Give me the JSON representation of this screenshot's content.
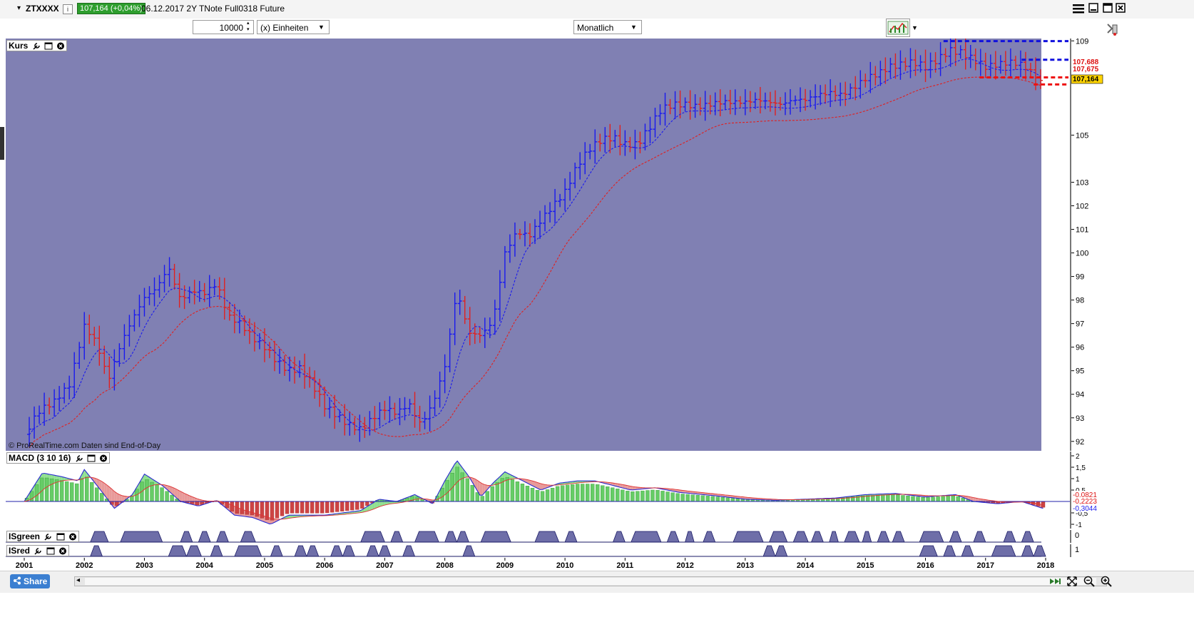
{
  "header": {
    "symbol": "ZTXXXX",
    "info_icon": "i",
    "price_badge": "107,164 (+0,04%)",
    "instrument": "06.12.2017 2Y TNote Full0318 Future"
  },
  "toolbar": {
    "quantity": "10000",
    "units": "(x) Einheiten",
    "period": "Monatlich"
  },
  "icons": {
    "menu": "hamburger-menu-icon",
    "minimize": "minimize-icon",
    "maximize": "maximize-icon",
    "close": "close-icon",
    "chart_type": "chart-type-icon",
    "side_handle": "side-handle-icon"
  },
  "colors": {
    "price_bg": "#8080b3",
    "up": "#1a1aee",
    "down": "#e02020",
    "ma_short": "#1a1aee",
    "ma_long": "#e02020",
    "macd_pos": "#66cc66",
    "macd_neg": "#cc4444",
    "zone_fill": "#6e6ea8"
  },
  "chart_data": [
    {
      "type": "ohlc",
      "panel": "Kurs",
      "x": [
        "2001",
        "2002",
        "2003",
        "2004",
        "2005",
        "2006",
        "2007",
        "2008",
        "2009",
        "2010",
        "2011",
        "2012",
        "2013",
        "2014",
        "2015",
        "2016",
        "2017",
        "2018"
      ],
      "ylim": [
        91.6,
        109.1
      ],
      "y_ticks": [
        "109",
        "105",
        "103",
        "102",
        "101",
        "100",
        "99",
        "98",
        "97",
        "96",
        "95",
        "94",
        "93",
        "92"
      ],
      "price_labels": [
        {
          "text": "107,688",
          "kind": "red"
        },
        {
          "text": "107,675",
          "kind": "red"
        },
        {
          "text": "107,164",
          "kind": "yellow"
        }
      ],
      "levels": [
        {
          "value": 108.99,
          "color": "blue",
          "from_year": 2016.3
        },
        {
          "value": 108.2,
          "color": "blue",
          "from_year": 2017.6
        },
        {
          "value": 107.45,
          "color": "red",
          "from_year": 2016.9
        },
        {
          "value": 107.15,
          "color": "red",
          "from_year": 2017.8
        }
      ],
      "watermark": "© ProRealTime.com  Daten sind End-of-Day",
      "series": [
        {
          "name": "Price (monthly close)",
          "points": [
            [
              2001.0,
              92.3
            ],
            [
              2001.25,
              93.3
            ],
            [
              2001.5,
              93.7
            ],
            [
              2001.75,
              94.4
            ],
            [
              2002.0,
              96.9
            ],
            [
              2002.2,
              96.2
            ],
            [
              2002.4,
              94.6
            ],
            [
              2002.6,
              96.1
            ],
            [
              2002.8,
              97.2
            ],
            [
              2003.0,
              98.1
            ],
            [
              2003.2,
              98.5
            ],
            [
              2003.4,
              99.4
            ],
            [
              2003.6,
              98.0
            ],
            [
              2003.8,
              98.4
            ],
            [
              2004.0,
              98.3
            ],
            [
              2004.2,
              98.7
            ],
            [
              2004.4,
              97.3
            ],
            [
              2004.6,
              97.0
            ],
            [
              2004.8,
              96.4
            ],
            [
              2005.0,
              96.0
            ],
            [
              2005.2,
              95.4
            ],
            [
              2005.4,
              95.0
            ],
            [
              2005.6,
              95.1
            ],
            [
              2005.8,
              94.4
            ],
            [
              2006.0,
              93.5
            ],
            [
              2006.2,
              93.1
            ],
            [
              2006.4,
              92.7
            ],
            [
              2006.6,
              92.5
            ],
            [
              2006.8,
              93.0
            ],
            [
              2007.0,
              93.4
            ],
            [
              2007.2,
              93.2
            ],
            [
              2007.4,
              93.6
            ],
            [
              2007.6,
              92.7
            ],
            [
              2007.8,
              93.6
            ],
            [
              2008.0,
              95.2
            ],
            [
              2008.2,
              98.4
            ],
            [
              2008.4,
              96.6
            ],
            [
              2008.6,
              96.5
            ],
            [
              2008.8,
              97.1
            ],
            [
              2009.0,
              100.0
            ],
            [
              2009.2,
              100.9
            ],
            [
              2009.4,
              100.7
            ],
            [
              2009.6,
              101.4
            ],
            [
              2009.8,
              102.0
            ],
            [
              2010.0,
              102.6
            ],
            [
              2010.2,
              103.7
            ],
            [
              2010.4,
              104.4
            ],
            [
              2010.6,
              104.8
            ],
            [
              2010.8,
              104.9
            ],
            [
              2011.0,
              104.6
            ],
            [
              2011.2,
              104.6
            ],
            [
              2011.4,
              105.3
            ],
            [
              2011.6,
              106.1
            ],
            [
              2011.8,
              106.3
            ],
            [
              2012.0,
              106.3
            ],
            [
              2012.2,
              106.2
            ],
            [
              2012.4,
              106.3
            ],
            [
              2012.6,
              106.4
            ],
            [
              2012.8,
              106.4
            ],
            [
              2013.0,
              106.4
            ],
            [
              2013.2,
              106.5
            ],
            [
              2013.4,
              106.4
            ],
            [
              2013.6,
              106.3
            ],
            [
              2013.8,
              106.5
            ],
            [
              2014.0,
              106.5
            ],
            [
              2014.2,
              106.7
            ],
            [
              2014.4,
              106.8
            ],
            [
              2014.6,
              106.7
            ],
            [
              2014.8,
              107.0
            ],
            [
              2015.0,
              107.4
            ],
            [
              2015.2,
              107.6
            ],
            [
              2015.4,
              107.9
            ],
            [
              2015.6,
              108.0
            ],
            [
              2015.8,
              108.1
            ],
            [
              2016.0,
              107.9
            ],
            [
              2016.2,
              108.2
            ],
            [
              2016.4,
              108.6
            ],
            [
              2016.6,
              108.5
            ],
            [
              2016.8,
              108.2
            ],
            [
              2017.0,
              107.9
            ],
            [
              2017.2,
              108.0
            ],
            [
              2017.4,
              108.1
            ],
            [
              2017.6,
              108.0
            ],
            [
              2017.8,
              107.6
            ],
            [
              2017.95,
              107.16
            ]
          ]
        }
      ]
    },
    {
      "type": "bar",
      "panel": "MACD (3 10 16)",
      "ylim": [
        -1.0,
        2.0
      ],
      "y_ticks": [
        "2",
        "1,5",
        "1",
        "0,5",
        "0",
        "-0,5",
        "-1"
      ],
      "value_labels": [
        "-0,0821",
        "-0,2223",
        "-0,3044"
      ],
      "series": [
        {
          "name": "MACD",
          "points": [
            [
              2001.0,
              0.0
            ],
            [
              2001.3,
              1.25
            ],
            [
              2001.6,
              1.1
            ],
            [
              2001.9,
              0.9
            ],
            [
              2002.0,
              1.4
            ],
            [
              2002.3,
              0.4
            ],
            [
              2002.5,
              -0.3
            ],
            [
              2002.8,
              0.3
            ],
            [
              2003.0,
              1.2
            ],
            [
              2003.3,
              0.7
            ],
            [
              2003.6,
              0.0
            ],
            [
              2003.9,
              -0.2
            ],
            [
              2004.2,
              0.05
            ],
            [
              2004.5,
              -0.6
            ],
            [
              2004.8,
              -0.7
            ],
            [
              2005.1,
              -1.0
            ],
            [
              2005.4,
              -0.6
            ],
            [
              2005.7,
              -0.6
            ],
            [
              2006.0,
              -0.6
            ],
            [
              2006.3,
              -0.5
            ],
            [
              2006.6,
              -0.4
            ],
            [
              2006.9,
              0.1
            ],
            [
              2007.2,
              0.0
            ],
            [
              2007.5,
              0.3
            ],
            [
              2007.8,
              -0.1
            ],
            [
              2008.0,
              0.9
            ],
            [
              2008.2,
              1.8
            ],
            [
              2008.4,
              1.1
            ],
            [
              2008.6,
              0.2
            ],
            [
              2008.8,
              0.8
            ],
            [
              2009.0,
              1.3
            ],
            [
              2009.3,
              0.9
            ],
            [
              2009.6,
              0.5
            ],
            [
              2009.9,
              0.8
            ],
            [
              2010.2,
              0.9
            ],
            [
              2010.5,
              0.9
            ],
            [
              2010.8,
              0.7
            ],
            [
              2011.1,
              0.5
            ],
            [
              2011.5,
              0.6
            ],
            [
              2011.9,
              0.4
            ],
            [
              2012.5,
              0.25
            ],
            [
              2013.0,
              0.1
            ],
            [
              2013.5,
              0.05
            ],
            [
              2014.0,
              0.1
            ],
            [
              2014.5,
              0.15
            ],
            [
              2015.0,
              0.3
            ],
            [
              2015.5,
              0.35
            ],
            [
              2016.0,
              0.2
            ],
            [
              2016.5,
              0.3
            ],
            [
              2016.8,
              0.0
            ],
            [
              2017.2,
              -0.1
            ],
            [
              2017.6,
              0.0
            ],
            [
              2017.95,
              -0.3
            ]
          ]
        }
      ]
    },
    {
      "type": "area",
      "panel": "ISgreen",
      "ylim": [
        0,
        1
      ],
      "y_ticks": [
        "0"
      ],
      "series": [
        {
          "name": "ISgreen",
          "segments": [
            [
              2002.1,
              2002.4
            ],
            [
              2002.6,
              2003.3
            ],
            [
              2003.6,
              2003.8
            ],
            [
              2003.9,
              2004.1
            ],
            [
              2004.2,
              2004.4
            ],
            [
              2004.6,
              2004.85
            ],
            [
              2006.6,
              2007.0
            ],
            [
              2007.1,
              2007.3
            ],
            [
              2007.5,
              2007.9
            ],
            [
              2008.0,
              2008.2
            ],
            [
              2008.2,
              2008.4
            ],
            [
              2008.6,
              2009.1
            ],
            [
              2009.5,
              2009.9
            ],
            [
              2010.0,
              2010.2
            ],
            [
              2010.8,
              2011.0
            ],
            [
              2011.1,
              2011.6
            ],
            [
              2011.7,
              2011.9
            ],
            [
              2012.0,
              2012.15
            ],
            [
              2012.3,
              2012.5
            ],
            [
              2012.8,
              2013.3
            ],
            [
              2013.4,
              2013.7
            ],
            [
              2013.8,
              2014.05
            ],
            [
              2014.1,
              2014.3
            ],
            [
              2014.4,
              2014.55
            ],
            [
              2014.65,
              2014.9
            ],
            [
              2014.95,
              2015.1
            ],
            [
              2015.2,
              2015.4
            ],
            [
              2015.45,
              2015.65
            ],
            [
              2015.9,
              2016.3
            ],
            [
              2016.4,
              2016.6
            ],
            [
              2016.8,
              2017.0
            ],
            [
              2017.3,
              2017.5
            ],
            [
              2017.6,
              2017.8
            ]
          ]
        }
      ]
    },
    {
      "type": "area",
      "panel": "ISred",
      "ylim": [
        0,
        1
      ],
      "y_ticks": [
        "1"
      ],
      "series": [
        {
          "name": "ISred",
          "segments": [
            [
              2002.1,
              2002.3
            ],
            [
              2003.4,
              2003.7
            ],
            [
              2003.7,
              2003.95
            ],
            [
              2004.1,
              2004.3
            ],
            [
              2004.5,
              2004.95
            ],
            [
              2005.1,
              2005.3
            ],
            [
              2005.5,
              2005.7
            ],
            [
              2005.7,
              2005.9
            ],
            [
              2006.1,
              2006.3
            ],
            [
              2006.3,
              2006.5
            ],
            [
              2006.7,
              2006.9
            ],
            [
              2006.9,
              2007.1
            ],
            [
              2007.3,
              2007.5
            ],
            [
              2008.3,
              2008.5
            ],
            [
              2013.3,
              2013.5
            ],
            [
              2013.5,
              2013.7
            ],
            [
              2015.9,
              2016.2
            ],
            [
              2016.3,
              2016.5
            ],
            [
              2016.6,
              2016.8
            ],
            [
              2017.1,
              2017.5
            ],
            [
              2017.6,
              2017.8
            ],
            [
              2017.8,
              2018.0
            ]
          ]
        }
      ]
    }
  ],
  "panels": {
    "kurs_title": "Kurs",
    "macd_title": "MACD (3 10 16)",
    "isgreen_title": "ISgreen",
    "isred_title": "ISred"
  },
  "footer": {
    "share": "Share",
    "scroll_left": "◂",
    "scroll_right": "▸"
  }
}
